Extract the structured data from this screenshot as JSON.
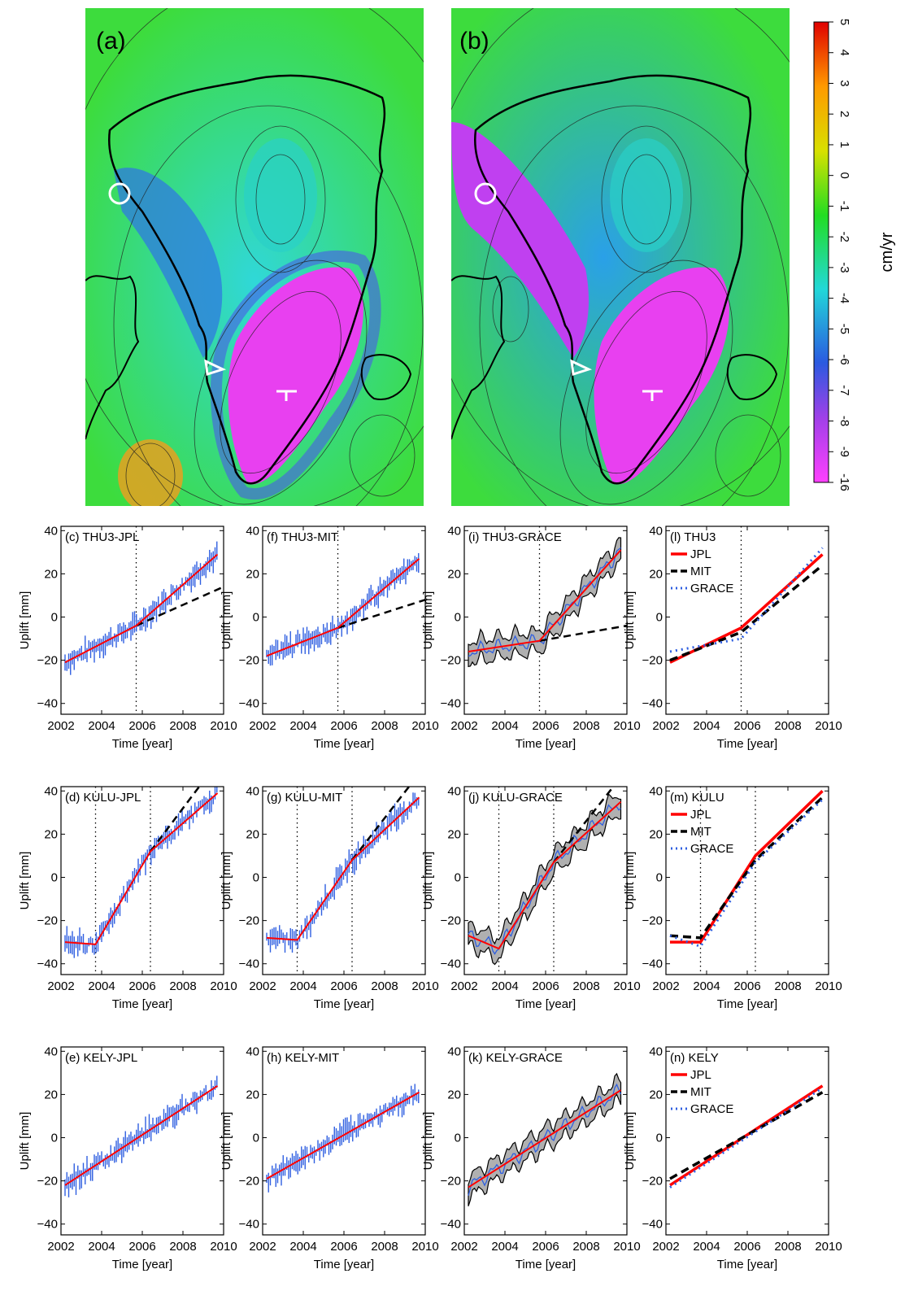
{
  "maps": [
    {
      "label": "(a)"
    },
    {
      "label": "(b)"
    }
  ],
  "colorbar": {
    "unit": "cm/yr",
    "ticks": [
      "5",
      "4",
      "3",
      "2",
      "1",
      "0",
      "-1",
      "-2",
      "-3",
      "-4",
      "-5",
      "-6",
      "-7",
      "-8",
      "-9",
      "-16"
    ],
    "colors": {
      "top": "#e00000",
      "orange": "#ff9a00",
      "yellow": "#d8e000",
      "green": "#22dd22",
      "cyan": "#22d8d8",
      "blue": "#2a5ae0",
      "purple": "#a040e8",
      "magenta": "#ff40ff"
    }
  },
  "station_markers": [
    "circle",
    "triangle",
    "cross"
  ],
  "panel_common": {
    "xlabel": "Time [year]",
    "ylabel": "Uplift [mm]",
    "xticks": [
      "2002",
      "2004",
      "2006",
      "2008",
      "2010"
    ],
    "yticks": [
      "40",
      "20",
      "0",
      "−20",
      "−40"
    ]
  },
  "legend_labels": [
    "JPL",
    "MIT",
    "GRACE"
  ],
  "colors": {
    "fit": "#ff0000",
    "obs": "#2f5fe0",
    "band": "#b0b0b0",
    "mit": "#000000"
  },
  "chart_data": [
    {
      "id": "c",
      "title": "(c) THU3-JPL",
      "type": "line",
      "xlim": [
        2002,
        2010
      ],
      "ylim": [
        -45,
        42
      ],
      "obs": "errorbar",
      "breaks": [
        2005.7
      ],
      "fit": {
        "x": [
          2002.2,
          2005.7,
          2009.7
        ],
        "y": [
          -21,
          -4,
          29
        ]
      },
      "extrapolation": {
        "x": [
          2005.7,
          2010
        ],
        "y": [
          -4,
          14
        ]
      }
    },
    {
      "id": "f",
      "title": "(f) THU3-MIT",
      "type": "line",
      "xlim": [
        2002,
        2010
      ],
      "ylim": [
        -45,
        42
      ],
      "obs": "errorbar",
      "breaks": [
        2005.7
      ],
      "fit": {
        "x": [
          2002.2,
          2005.7,
          2009.7
        ],
        "y": [
          -18,
          -5,
          27
        ]
      },
      "extrapolation": {
        "x": [
          2005.7,
          2010
        ],
        "y": [
          -5,
          8
        ]
      }
    },
    {
      "id": "i",
      "title": "(i) THU3-GRACE",
      "type": "line",
      "xlim": [
        2002,
        2010
      ],
      "ylim": [
        -45,
        42
      ],
      "obs": "band",
      "breaks": [
        2005.7
      ],
      "fit": {
        "x": [
          2002.2,
          2005.7,
          2009.7
        ],
        "y": [
          -16,
          -11,
          31
        ]
      },
      "extrapolation": {
        "x": [
          2005.7,
          2010
        ],
        "y": [
          -11,
          -4
        ]
      }
    },
    {
      "id": "l",
      "title": "(l) THU3",
      "type": "line",
      "xlim": [
        2002,
        2010
      ],
      "ylim": [
        -45,
        42
      ],
      "obs": "none",
      "breaks": [
        2005.7
      ],
      "legend": true,
      "series": [
        {
          "name": "JPL",
          "style": "solid",
          "x": [
            2002.2,
            2005.7,
            2009.7
          ],
          "y": [
            -21,
            -5,
            29
          ]
        },
        {
          "name": "MIT",
          "style": "dashed",
          "x": [
            2002.2,
            2005.7,
            2009.7
          ],
          "y": [
            -20,
            -7,
            24
          ]
        },
        {
          "name": "GRACE",
          "style": "dotted",
          "x": [
            2002.2,
            2005.7,
            2009.7
          ],
          "y": [
            -16,
            -10,
            32
          ]
        }
      ]
    },
    {
      "id": "d",
      "title": "(d) KULU-JPL",
      "type": "line",
      "xlim": [
        2002,
        2010
      ],
      "ylim": [
        -45,
        42
      ],
      "obs": "errorbar",
      "breaks": [
        2003.7,
        2006.4
      ],
      "fit": {
        "x": [
          2002.2,
          2003.7,
          2006.4,
          2009.7
        ],
        "y": [
          -30,
          -31,
          12,
          39
        ]
      },
      "extrapolation": {
        "x": [
          2006.4,
          2008.8
        ],
        "y": [
          12,
          42
        ]
      }
    },
    {
      "id": "g",
      "title": "(g) KULU-MIT",
      "type": "line",
      "xlim": [
        2002,
        2010
      ],
      "ylim": [
        -45,
        42
      ],
      "obs": "errorbar",
      "breaks": [
        2003.7,
        2006.4
      ],
      "fit": {
        "x": [
          2002.2,
          2003.7,
          2006.4,
          2009.7
        ],
        "y": [
          -28,
          -29,
          8,
          37
        ]
      },
      "extrapolation": {
        "x": [
          2006.4,
          2009.2
        ],
        "y": [
          8,
          42
        ]
      }
    },
    {
      "id": "j",
      "title": "(j) KULU-GRACE",
      "type": "line",
      "xlim": [
        2002,
        2010
      ],
      "ylim": [
        -45,
        42
      ],
      "obs": "band",
      "breaks": [
        2003.7,
        2006.4
      ],
      "fit": {
        "x": [
          2002.2,
          2003.7,
          2006.4,
          2009.7
        ],
        "y": [
          -27,
          -33,
          7,
          35
        ]
      },
      "extrapolation": {
        "x": [
          2006.4,
          2009.5
        ],
        "y": [
          7,
          44
        ]
      }
    },
    {
      "id": "m",
      "title": "(m) KULU",
      "type": "line",
      "xlim": [
        2002,
        2010
      ],
      "ylim": [
        -45,
        42
      ],
      "obs": "none",
      "breaks": [
        2003.7,
        2006.4
      ],
      "legend": true,
      "series": [
        {
          "name": "JPL",
          "style": "solid",
          "x": [
            2002.2,
            2003.7,
            2006.4,
            2009.7
          ],
          "y": [
            -30,
            -30,
            10,
            40
          ]
        },
        {
          "name": "MIT",
          "style": "dashed",
          "x": [
            2002.2,
            2003.7,
            2006.4,
            2009.7
          ],
          "y": [
            -27,
            -28,
            8,
            37
          ]
        },
        {
          "name": "GRACE",
          "style": "dotted",
          "x": [
            2002.2,
            2003.7,
            2006.4,
            2009.7
          ],
          "y": [
            -27,
            -32,
            7,
            36
          ]
        }
      ]
    },
    {
      "id": "e",
      "title": "(e) KELY-JPL",
      "type": "line",
      "xlim": [
        2002,
        2010
      ],
      "ylim": [
        -45,
        42
      ],
      "obs": "errorbar",
      "breaks": [],
      "fit": {
        "x": [
          2002.2,
          2009.7
        ],
        "y": [
          -22,
          24
        ]
      }
    },
    {
      "id": "h",
      "title": "(h) KELY-MIT",
      "type": "line",
      "xlim": [
        2002,
        2010
      ],
      "ylim": [
        -45,
        42
      ],
      "obs": "errorbar",
      "breaks": [],
      "fit": {
        "x": [
          2002.2,
          2009.7
        ],
        "y": [
          -19,
          21
        ]
      }
    },
    {
      "id": "k",
      "title": "(k) KELY-GRACE",
      "type": "line",
      "xlim": [
        2002,
        2010
      ],
      "ylim": [
        -45,
        42
      ],
      "obs": "band",
      "breaks": [],
      "fit": {
        "x": [
          2002.2,
          2009.7
        ],
        "y": [
          -23,
          22
        ]
      }
    },
    {
      "id": "n",
      "title": "(n) KELY",
      "type": "line",
      "xlim": [
        2002,
        2010
      ],
      "ylim": [
        -45,
        42
      ],
      "obs": "none",
      "breaks": [],
      "legend": true,
      "series": [
        {
          "name": "JPL",
          "style": "solid",
          "x": [
            2002.2,
            2009.7
          ],
          "y": [
            -22,
            24
          ]
        },
        {
          "name": "MIT",
          "style": "dashed",
          "x": [
            2002.2,
            2009.7
          ],
          "y": [
            -19,
            21
          ]
        },
        {
          "name": "GRACE",
          "style": "dotted",
          "x": [
            2002.2,
            2009.7
          ],
          "y": [
            -23,
            23
          ]
        }
      ]
    }
  ]
}
